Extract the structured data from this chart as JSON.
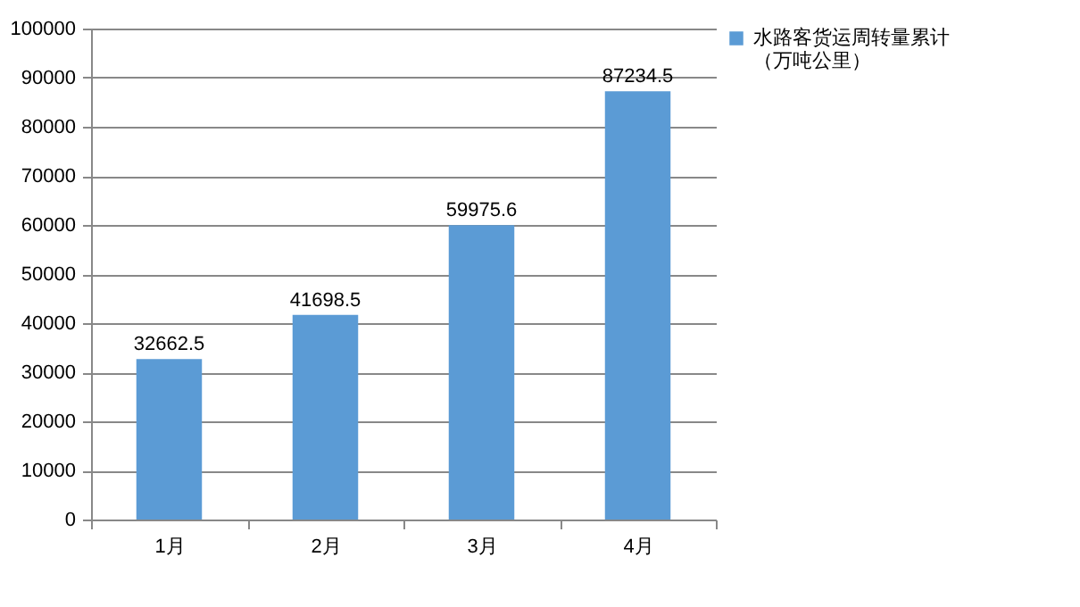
{
  "chart_data": {
    "type": "bar",
    "categories": [
      "1月",
      "2月",
      "3月",
      "4月"
    ],
    "series": [
      {
        "name": "水路客货运周转量累计（万吨公里）",
        "color": "#5b9bd5",
        "values": [
          32662.5,
          41698.5,
          59975.6,
          87234.5
        ]
      }
    ],
    "ylim": [
      0,
      100000
    ],
    "yticks": [
      0,
      10000,
      20000,
      30000,
      40000,
      50000,
      60000,
      70000,
      80000,
      90000,
      100000
    ],
    "grid": "y",
    "legend": "right",
    "data_labels": true
  }
}
